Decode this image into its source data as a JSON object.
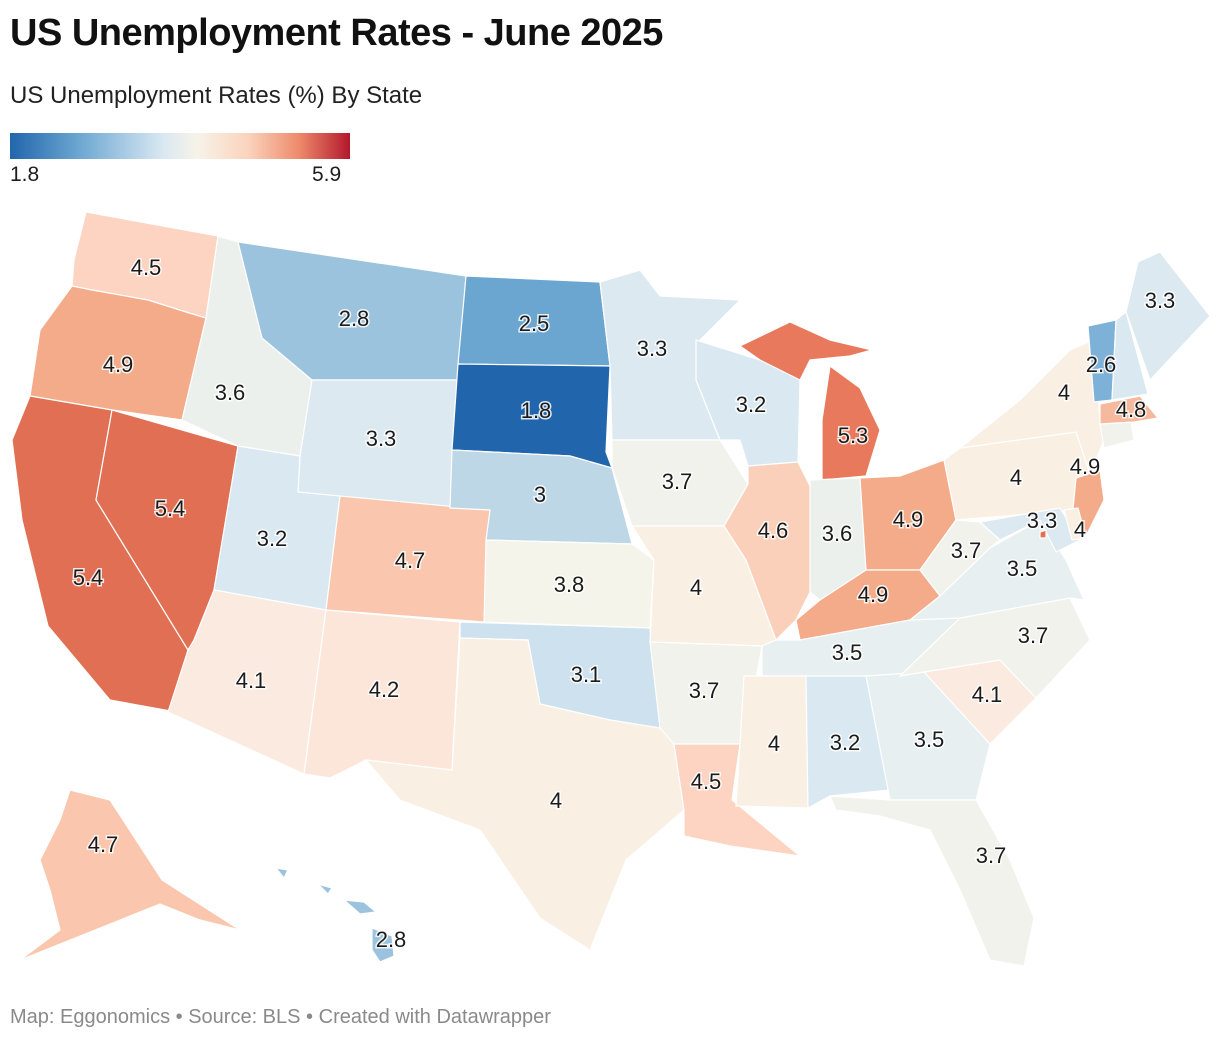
{
  "title": "US Unemployment Rates - June 2025",
  "subtitle": "US Unemployment Rates (%) By State",
  "legend": {
    "min": "1.8",
    "max": "5.9"
  },
  "footer": {
    "map": "Map: Eggonomics",
    "sep1": " • ",
    "source": "Source: BLS",
    "sep2": " • ",
    "created": "Created with Datawrapper"
  },
  "colors": {
    "c1_8": "#2166ac",
    "c2_5": "#6ba6d1",
    "c2_6": "#7db1d8",
    "c2_8": "#9cc3de",
    "c3_0": "#bdd7e7",
    "c3_1": "#cde1ee",
    "c3_2": "#d9e8f1",
    "c3_3": "#dce9f1",
    "c3_5": "#e7eff1",
    "c3_6": "#ebf0ec",
    "c3_7": "#f1f2ec",
    "c3_8": "#f5f4ea",
    "c4_0": "#f9efe3",
    "c4_1": "#fbeadf",
    "c4_2": "#fce6da",
    "c4_5": "#fcd4c1",
    "c4_6": "#fbd0bb",
    "c4_7": "#fac6ae",
    "c4_8": "#f6b99e",
    "c4_9": "#f4ab8a",
    "c5_3": "#e8795c",
    "c5_4": "#e06f53"
  },
  "states": [
    {
      "abbr": "WA",
      "value": "4.5"
    },
    {
      "abbr": "OR",
      "value": "4.9"
    },
    {
      "abbr": "CA",
      "value": "5.4"
    },
    {
      "abbr": "NV",
      "value": "5.4"
    },
    {
      "abbr": "ID",
      "value": "3.6"
    },
    {
      "abbr": "MT",
      "value": "2.8"
    },
    {
      "abbr": "WY",
      "value": "3.3"
    },
    {
      "abbr": "UT",
      "value": "3.2"
    },
    {
      "abbr": "CO",
      "value": "4.7"
    },
    {
      "abbr": "AZ",
      "value": "4.1"
    },
    {
      "abbr": "NM",
      "value": "4.2"
    },
    {
      "abbr": "ND",
      "value": "2.5"
    },
    {
      "abbr": "SD",
      "value": "1.8"
    },
    {
      "abbr": "NE",
      "value": "3"
    },
    {
      "abbr": "KS",
      "value": "3.8"
    },
    {
      "abbr": "OK",
      "value": "3.1"
    },
    {
      "abbr": "TX",
      "value": "4"
    },
    {
      "abbr": "MN",
      "value": "3.3"
    },
    {
      "abbr": "IA",
      "value": "3.7"
    },
    {
      "abbr": "MO",
      "value": "4"
    },
    {
      "abbr": "AR",
      "value": "3.7"
    },
    {
      "abbr": "LA",
      "value": "4.5"
    },
    {
      "abbr": "WI",
      "value": "3.2"
    },
    {
      "abbr": "IL",
      "value": "4.6"
    },
    {
      "abbr": "MI",
      "value": "5.3"
    },
    {
      "abbr": "IN",
      "value": "3.6"
    },
    {
      "abbr": "OH",
      "value": "4.9"
    },
    {
      "abbr": "KY",
      "value": "4.9"
    },
    {
      "abbr": "TN",
      "value": "3.5"
    },
    {
      "abbr": "MS",
      "value": "4"
    },
    {
      "abbr": "AL",
      "value": "3.2"
    },
    {
      "abbr": "GA",
      "value": "3.5"
    },
    {
      "abbr": "FL",
      "value": "3.7"
    },
    {
      "abbr": "SC",
      "value": "4.1"
    },
    {
      "abbr": "NC",
      "value": "3.7"
    },
    {
      "abbr": "VA",
      "value": "3.5"
    },
    {
      "abbr": "WV",
      "value": "3.7"
    },
    {
      "abbr": "PA",
      "value": "4"
    },
    {
      "abbr": "NY",
      "value": "4"
    },
    {
      "abbr": "NJ",
      "value": "4.9"
    },
    {
      "abbr": "MD",
      "value": "3.3"
    },
    {
      "abbr": "DE",
      "value": "4"
    },
    {
      "abbr": "VT",
      "value": "2.6"
    },
    {
      "abbr": "ME",
      "value": "3.3"
    },
    {
      "abbr": "MA",
      "value": "4.8"
    },
    {
      "abbr": "AK",
      "value": "4.7"
    },
    {
      "abbr": "HI",
      "value": "2.8"
    }
  ]
}
